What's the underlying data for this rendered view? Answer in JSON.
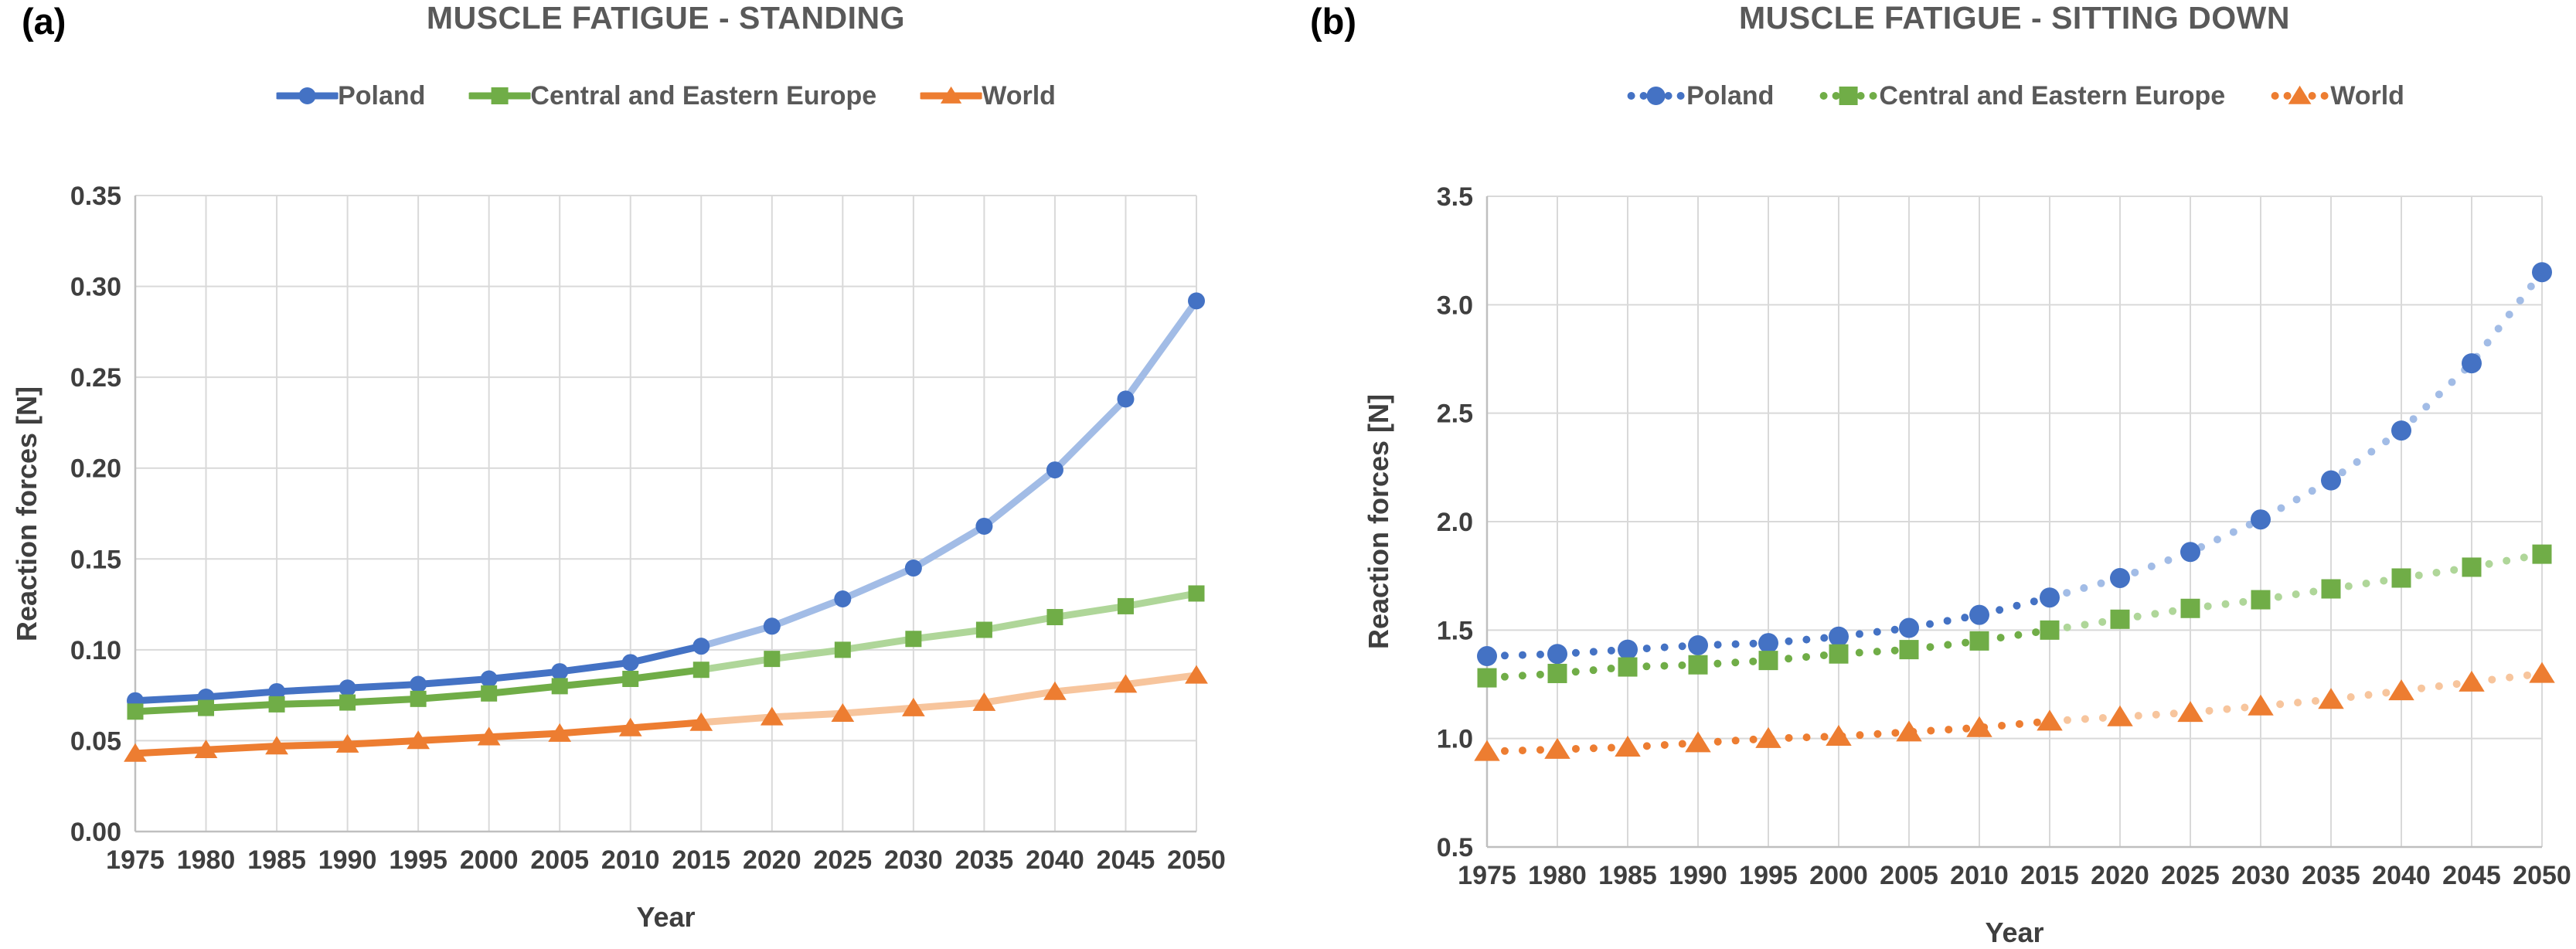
{
  "chart_data": [
    {
      "type": "line",
      "panel_label": "(a)",
      "title": "MUSCLE FATIGUE - STANDING",
      "xlabel": "Year",
      "ylabel": "Reaction forces [N]",
      "line_style": "solid",
      "grid": true,
      "legend_position": "top",
      "x": [
        1975,
        1980,
        1985,
        1990,
        1995,
        2000,
        2005,
        2010,
        2015,
        2020,
        2025,
        2030,
        2035,
        2040,
        2045,
        2050
      ],
      "y_min": 0.0,
      "y_max": 0.35,
      "y_tick_labels": [
        "0.00",
        "0.05",
        "0.10",
        "0.15",
        "0.20",
        "0.25",
        "0.30",
        "0.35"
      ],
      "projection_start_year": 2015,
      "series": [
        {
          "name": "Poland",
          "marker": "circle",
          "color": "#4472C4",
          "projection_color": "#A2BCE6",
          "values": [
            0.072,
            0.074,
            0.077,
            0.079,
            0.081,
            0.084,
            0.088,
            0.093,
            0.102,
            0.113,
            0.128,
            0.145,
            0.168,
            0.199,
            0.238,
            0.292
          ]
        },
        {
          "name": "Central and Eastern Europe",
          "marker": "square",
          "color": "#70AD47",
          "projection_color": "#AFD699",
          "values": [
            0.066,
            0.068,
            0.07,
            0.071,
            0.073,
            0.076,
            0.08,
            0.084,
            0.089,
            0.095,
            0.1,
            0.106,
            0.111,
            0.118,
            0.124,
            0.131
          ]
        },
        {
          "name": "World",
          "marker": "triangle",
          "color": "#ED7D31",
          "projection_color": "#F7C59D",
          "values": [
            0.043,
            0.045,
            0.047,
            0.048,
            0.05,
            0.052,
            0.054,
            0.057,
            0.06,
            0.063,
            0.065,
            0.068,
            0.071,
            0.077,
            0.081,
            0.086
          ]
        }
      ]
    },
    {
      "type": "line",
      "panel_label": "(b)",
      "title": "MUSCLE FATIGUE - SITTING DOWN",
      "xlabel": "Year",
      "ylabel": "Reaction forces [N]",
      "line_style": "dotted",
      "grid": true,
      "legend_position": "top",
      "x": [
        1975,
        1980,
        1985,
        1990,
        1995,
        2000,
        2005,
        2010,
        2015,
        2020,
        2025,
        2030,
        2035,
        2040,
        2045,
        2050
      ],
      "y_min": 0.5,
      "y_max": 3.5,
      "y_tick_labels": [
        "0.5",
        "1.0",
        "1.5",
        "2.0",
        "2.5",
        "3.0",
        "3.5"
      ],
      "projection_start_year": 2015,
      "series": [
        {
          "name": "Poland",
          "marker": "circle",
          "color": "#4472C4",
          "projection_color": "#A2BCE6",
          "values": [
            1.38,
            1.39,
            1.41,
            1.43,
            1.44,
            1.47,
            1.51,
            1.57,
            1.65,
            1.74,
            1.86,
            2.01,
            2.19,
            2.42,
            2.73,
            3.15
          ]
        },
        {
          "name": "Central and Eastern Europe",
          "marker": "square",
          "color": "#70AD47",
          "projection_color": "#AFD699",
          "values": [
            1.28,
            1.3,
            1.33,
            1.34,
            1.36,
            1.39,
            1.41,
            1.45,
            1.5,
            1.55,
            1.6,
            1.64,
            1.69,
            1.74,
            1.79,
            1.85
          ]
        },
        {
          "name": "World",
          "marker": "triangle",
          "color": "#ED7D31",
          "projection_color": "#F7C59D",
          "values": [
            0.94,
            0.95,
            0.96,
            0.98,
            1.0,
            1.01,
            1.03,
            1.05,
            1.08,
            1.1,
            1.12,
            1.15,
            1.18,
            1.22,
            1.26,
            1.3
          ]
        }
      ]
    }
  ]
}
